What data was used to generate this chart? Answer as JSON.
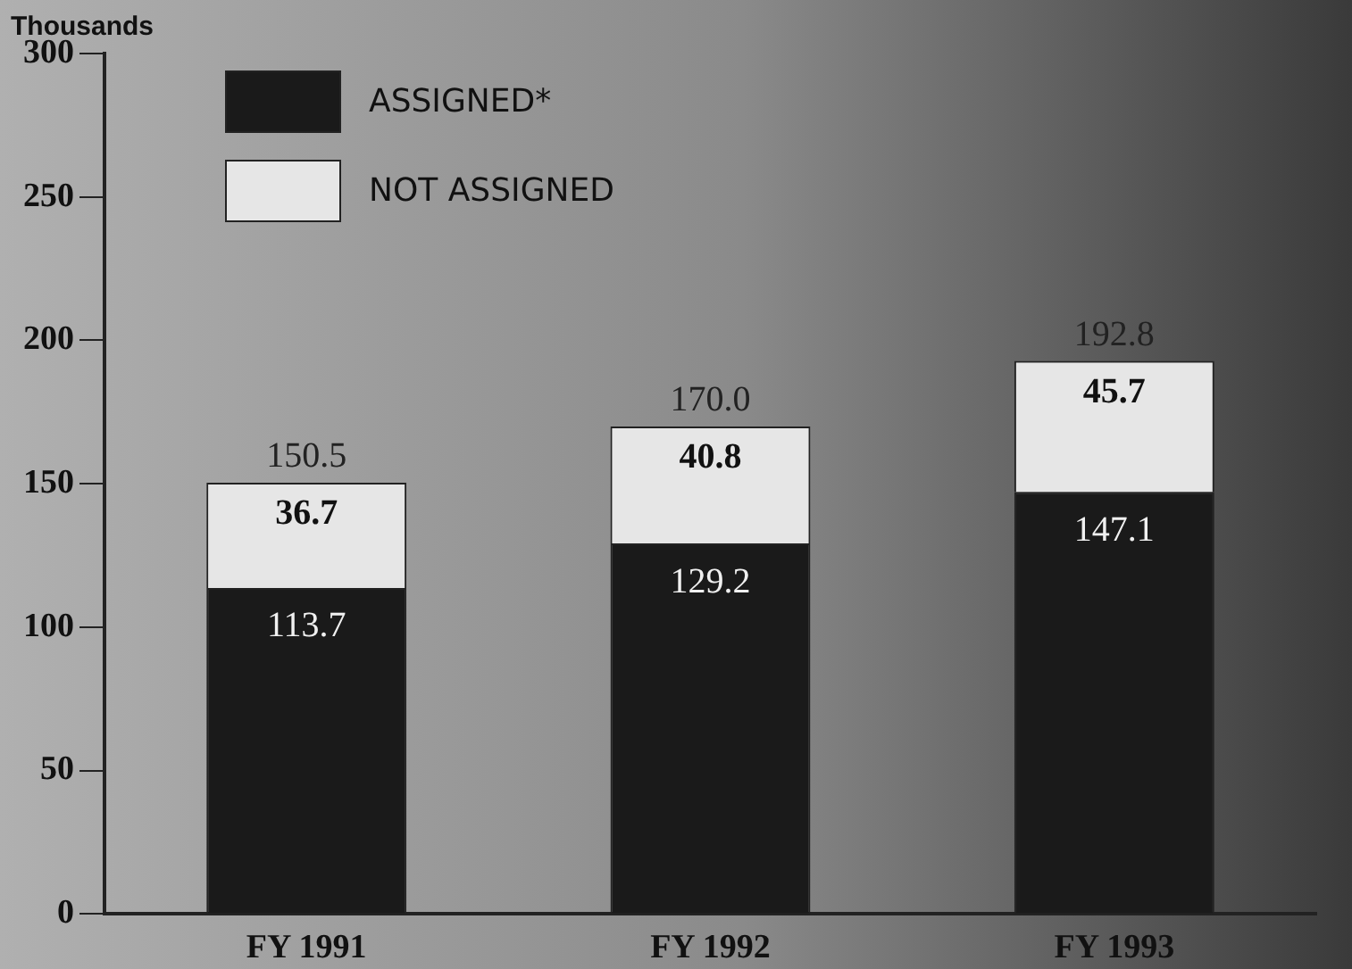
{
  "chart_data": {
    "type": "bar",
    "stacked": true,
    "ylabel": "Thousands",
    "categories": [
      "FY 1991",
      "FY 1992",
      "FY 1993"
    ],
    "series": [
      {
        "name": "ASSIGNED*",
        "color": "#1a1a1a",
        "values": [
          113.7,
          129.2,
          147.1
        ]
      },
      {
        "name": "NOT ASSIGNED",
        "color": "#e6e6e6",
        "values": [
          36.7,
          40.8,
          45.7
        ]
      }
    ],
    "totals": [
      "150.5",
      "170.0",
      "192.8"
    ],
    "data_labels": true,
    "legend": "top left",
    "grid": false,
    "ylim": [
      0,
      300
    ],
    "yticks": [
      0,
      50,
      100,
      150,
      200,
      250,
      300
    ]
  }
}
